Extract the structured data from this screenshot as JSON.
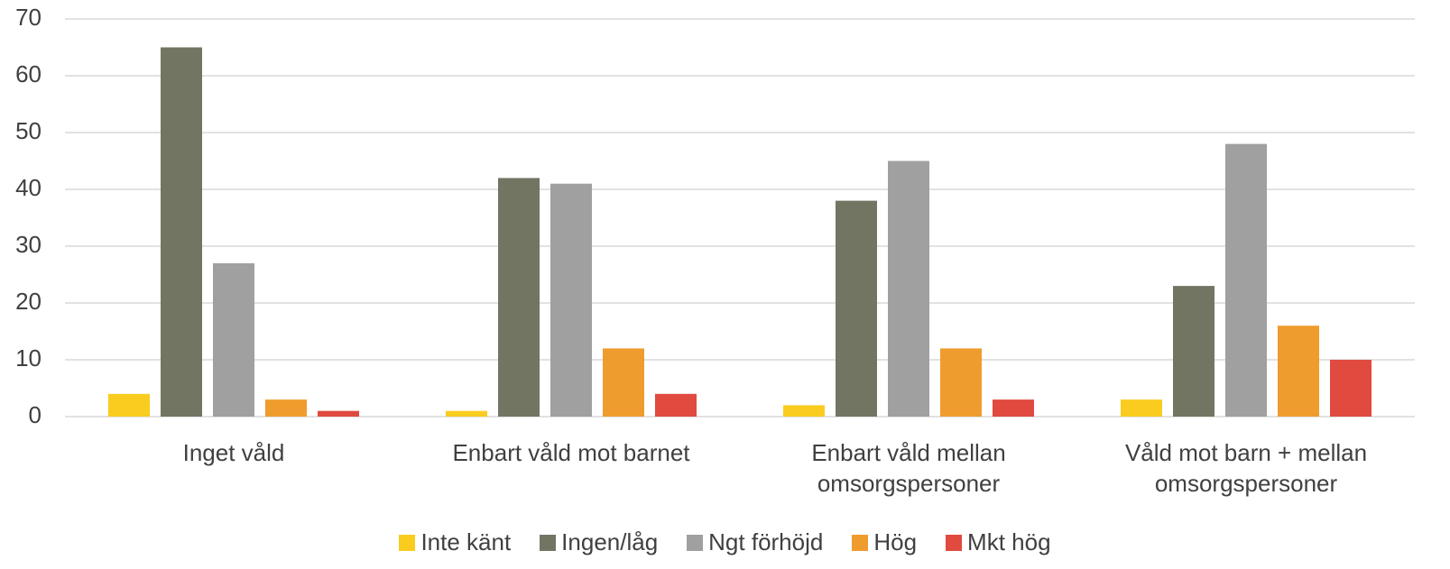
{
  "chart_data": {
    "type": "bar",
    "categories": [
      "Inget våld",
      "Enbart våld mot barnet",
      "Enbart våld mellan omsorgspersoner",
      "Våld mot barn + mellan omsorgspersoner"
    ],
    "series": [
      {
        "name": "Inte känt",
        "color": "#f9cc1f",
        "values": [
          4,
          1,
          2,
          3
        ]
      },
      {
        "name": "Ingen/låg",
        "color": "#737563",
        "values": [
          65,
          42,
          38,
          23
        ]
      },
      {
        "name": "Ngt förhöjd",
        "color": "#a0a0a0",
        "values": [
          27,
          41,
          45,
          48
        ]
      },
      {
        "name": "Hög",
        "color": "#ef9c2e",
        "values": [
          3,
          12,
          12,
          16
        ]
      },
      {
        "name": "Mkt hög",
        "color": "#e04a3f",
        "values": [
          1,
          4,
          3,
          10
        ]
      }
    ],
    "ylim": [
      0,
      70
    ],
    "yticks": [
      0,
      10,
      20,
      30,
      40,
      50,
      60,
      70
    ],
    "grid": true,
    "legend": "bottom"
  }
}
